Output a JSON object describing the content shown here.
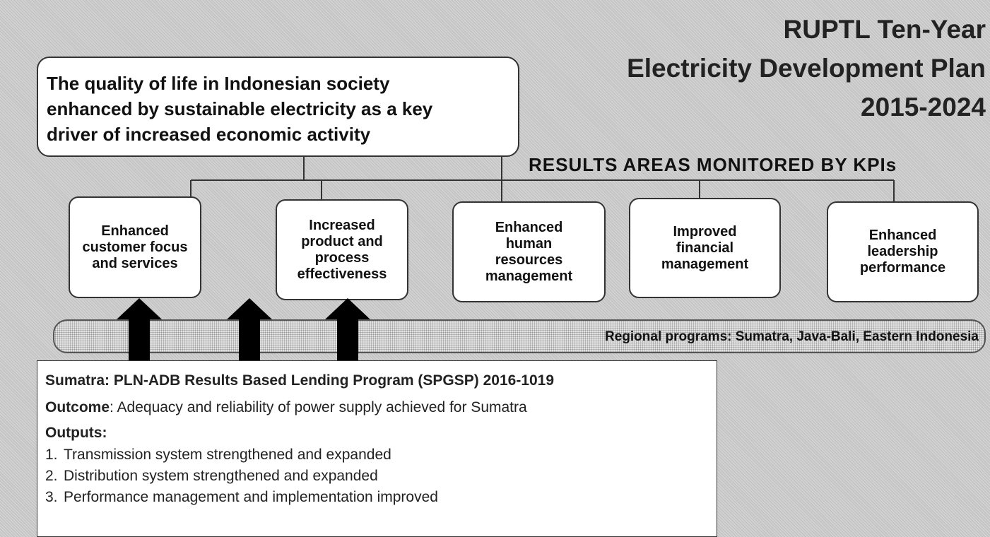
{
  "title": {
    "lines": [
      "RUPTL Ten-Year",
      "Electricity Development Plan",
      "2015-2024"
    ]
  },
  "goal": {
    "lines": [
      "The quality of life in Indonesian society",
      "enhanced by sustainable electricity as a key",
      "driver of increased economic activity"
    ]
  },
  "results_heading": "RESULTS AREAS MONITORED BY KPIs",
  "result_areas": [
    {
      "lines": [
        "Enhanced",
        "customer focus",
        "and services"
      ]
    },
    {
      "lines": [
        "Increased",
        "product and",
        "process",
        "effectiveness"
      ]
    },
    {
      "lines": [
        "Enhanced",
        "human",
        "resources",
        "management"
      ]
    },
    {
      "lines": [
        "Improved",
        "financial",
        "management"
      ]
    },
    {
      "lines": [
        "Enhanced",
        "leadership",
        "performance"
      ]
    }
  ],
  "regional_banner": "Regional programs: Sumatra, Java-Bali, Eastern Indonesia",
  "program": {
    "heading": "Sumatra: PLN-ADB Results  Based Lending Program (SPGSP) 2016-1019",
    "outcome_label": "Outcome",
    "outcome_text": ": Adequacy and reliability of power supply achieved for Sumatra",
    "outputs_label": "Outputs:",
    "outputs": [
      {
        "number": "1.",
        "text": "Transmission system strengthened and expanded"
      },
      {
        "number": "2.",
        "text": "Distribution system strengthened and expanded"
      },
      {
        "number": "3.",
        "text": "Performance management and implementation improved"
      }
    ]
  }
}
